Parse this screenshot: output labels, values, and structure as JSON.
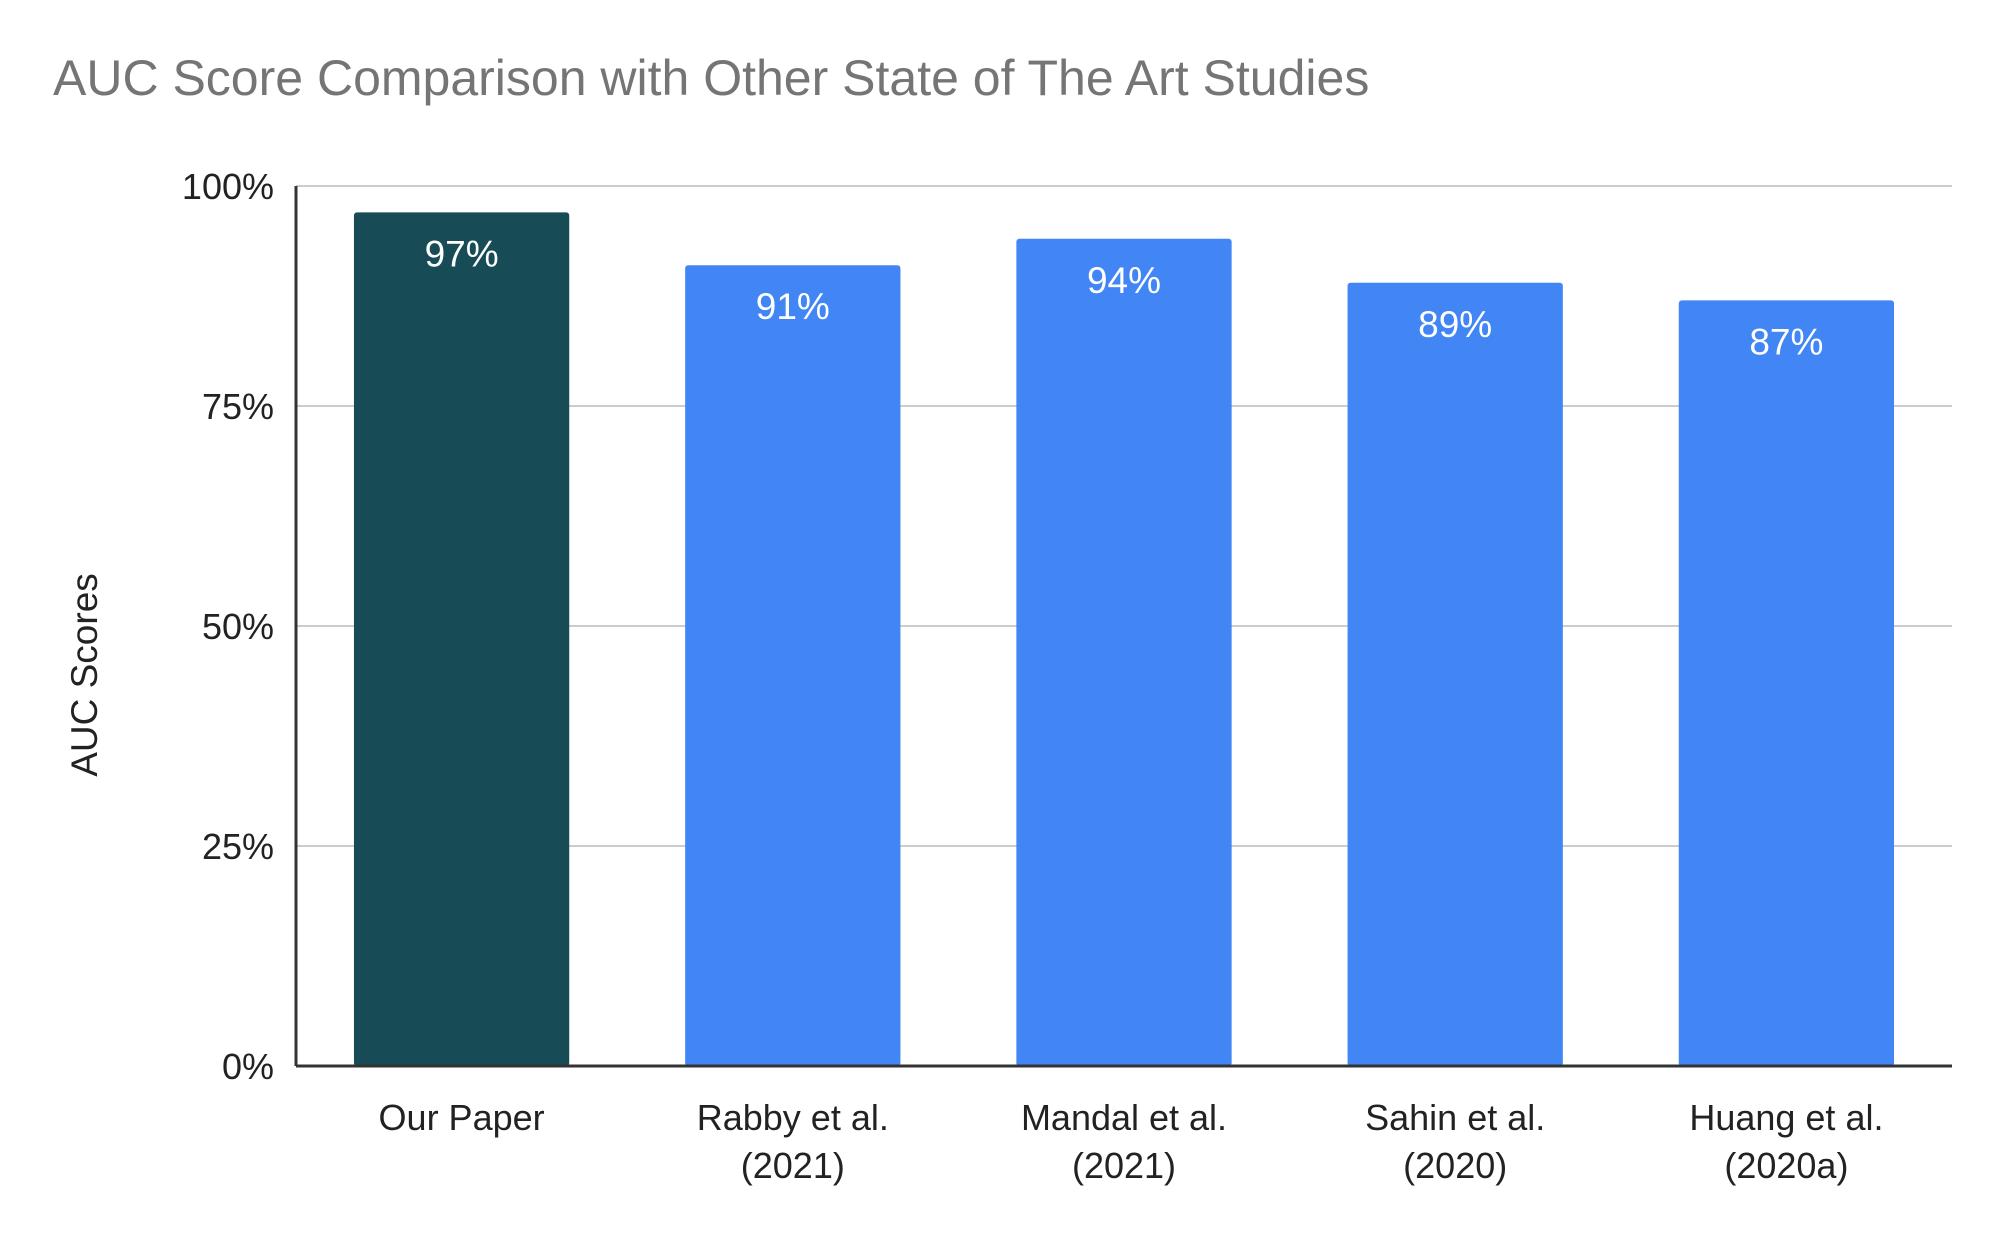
{
  "chart_data": {
    "type": "bar",
    "title": "AUC Score Comparison with Other State of The  Art Studies",
    "xlabel": "",
    "ylabel": "AUC Scores",
    "categories": [
      [
        "Our Paper"
      ],
      [
        "Rabby et al.",
        "(2021)"
      ],
      [
        "Mandal et al.",
        "(2021)"
      ],
      [
        "Sahin et al.",
        "(2020)"
      ],
      [
        "Huang et al.",
        "(2020a)"
      ]
    ],
    "values": [
      97,
      91,
      94,
      89,
      87
    ],
    "data_labels": [
      "97%",
      "91%",
      "94%",
      "89%",
      "87%"
    ],
    "ylim": [
      0,
      100
    ],
    "yticks": [
      0,
      25,
      50,
      75,
      100
    ],
    "ytick_labels": [
      "0%",
      "25%",
      "50%",
      "75%",
      "100%"
    ],
    "grid": true,
    "legend": "none",
    "bar_colors": [
      "#174c56",
      "#4285f4",
      "#4285f4",
      "#4285f4",
      "#4285f4"
    ],
    "grid_color": "#cccccc",
    "axis_color": "#333333"
  }
}
